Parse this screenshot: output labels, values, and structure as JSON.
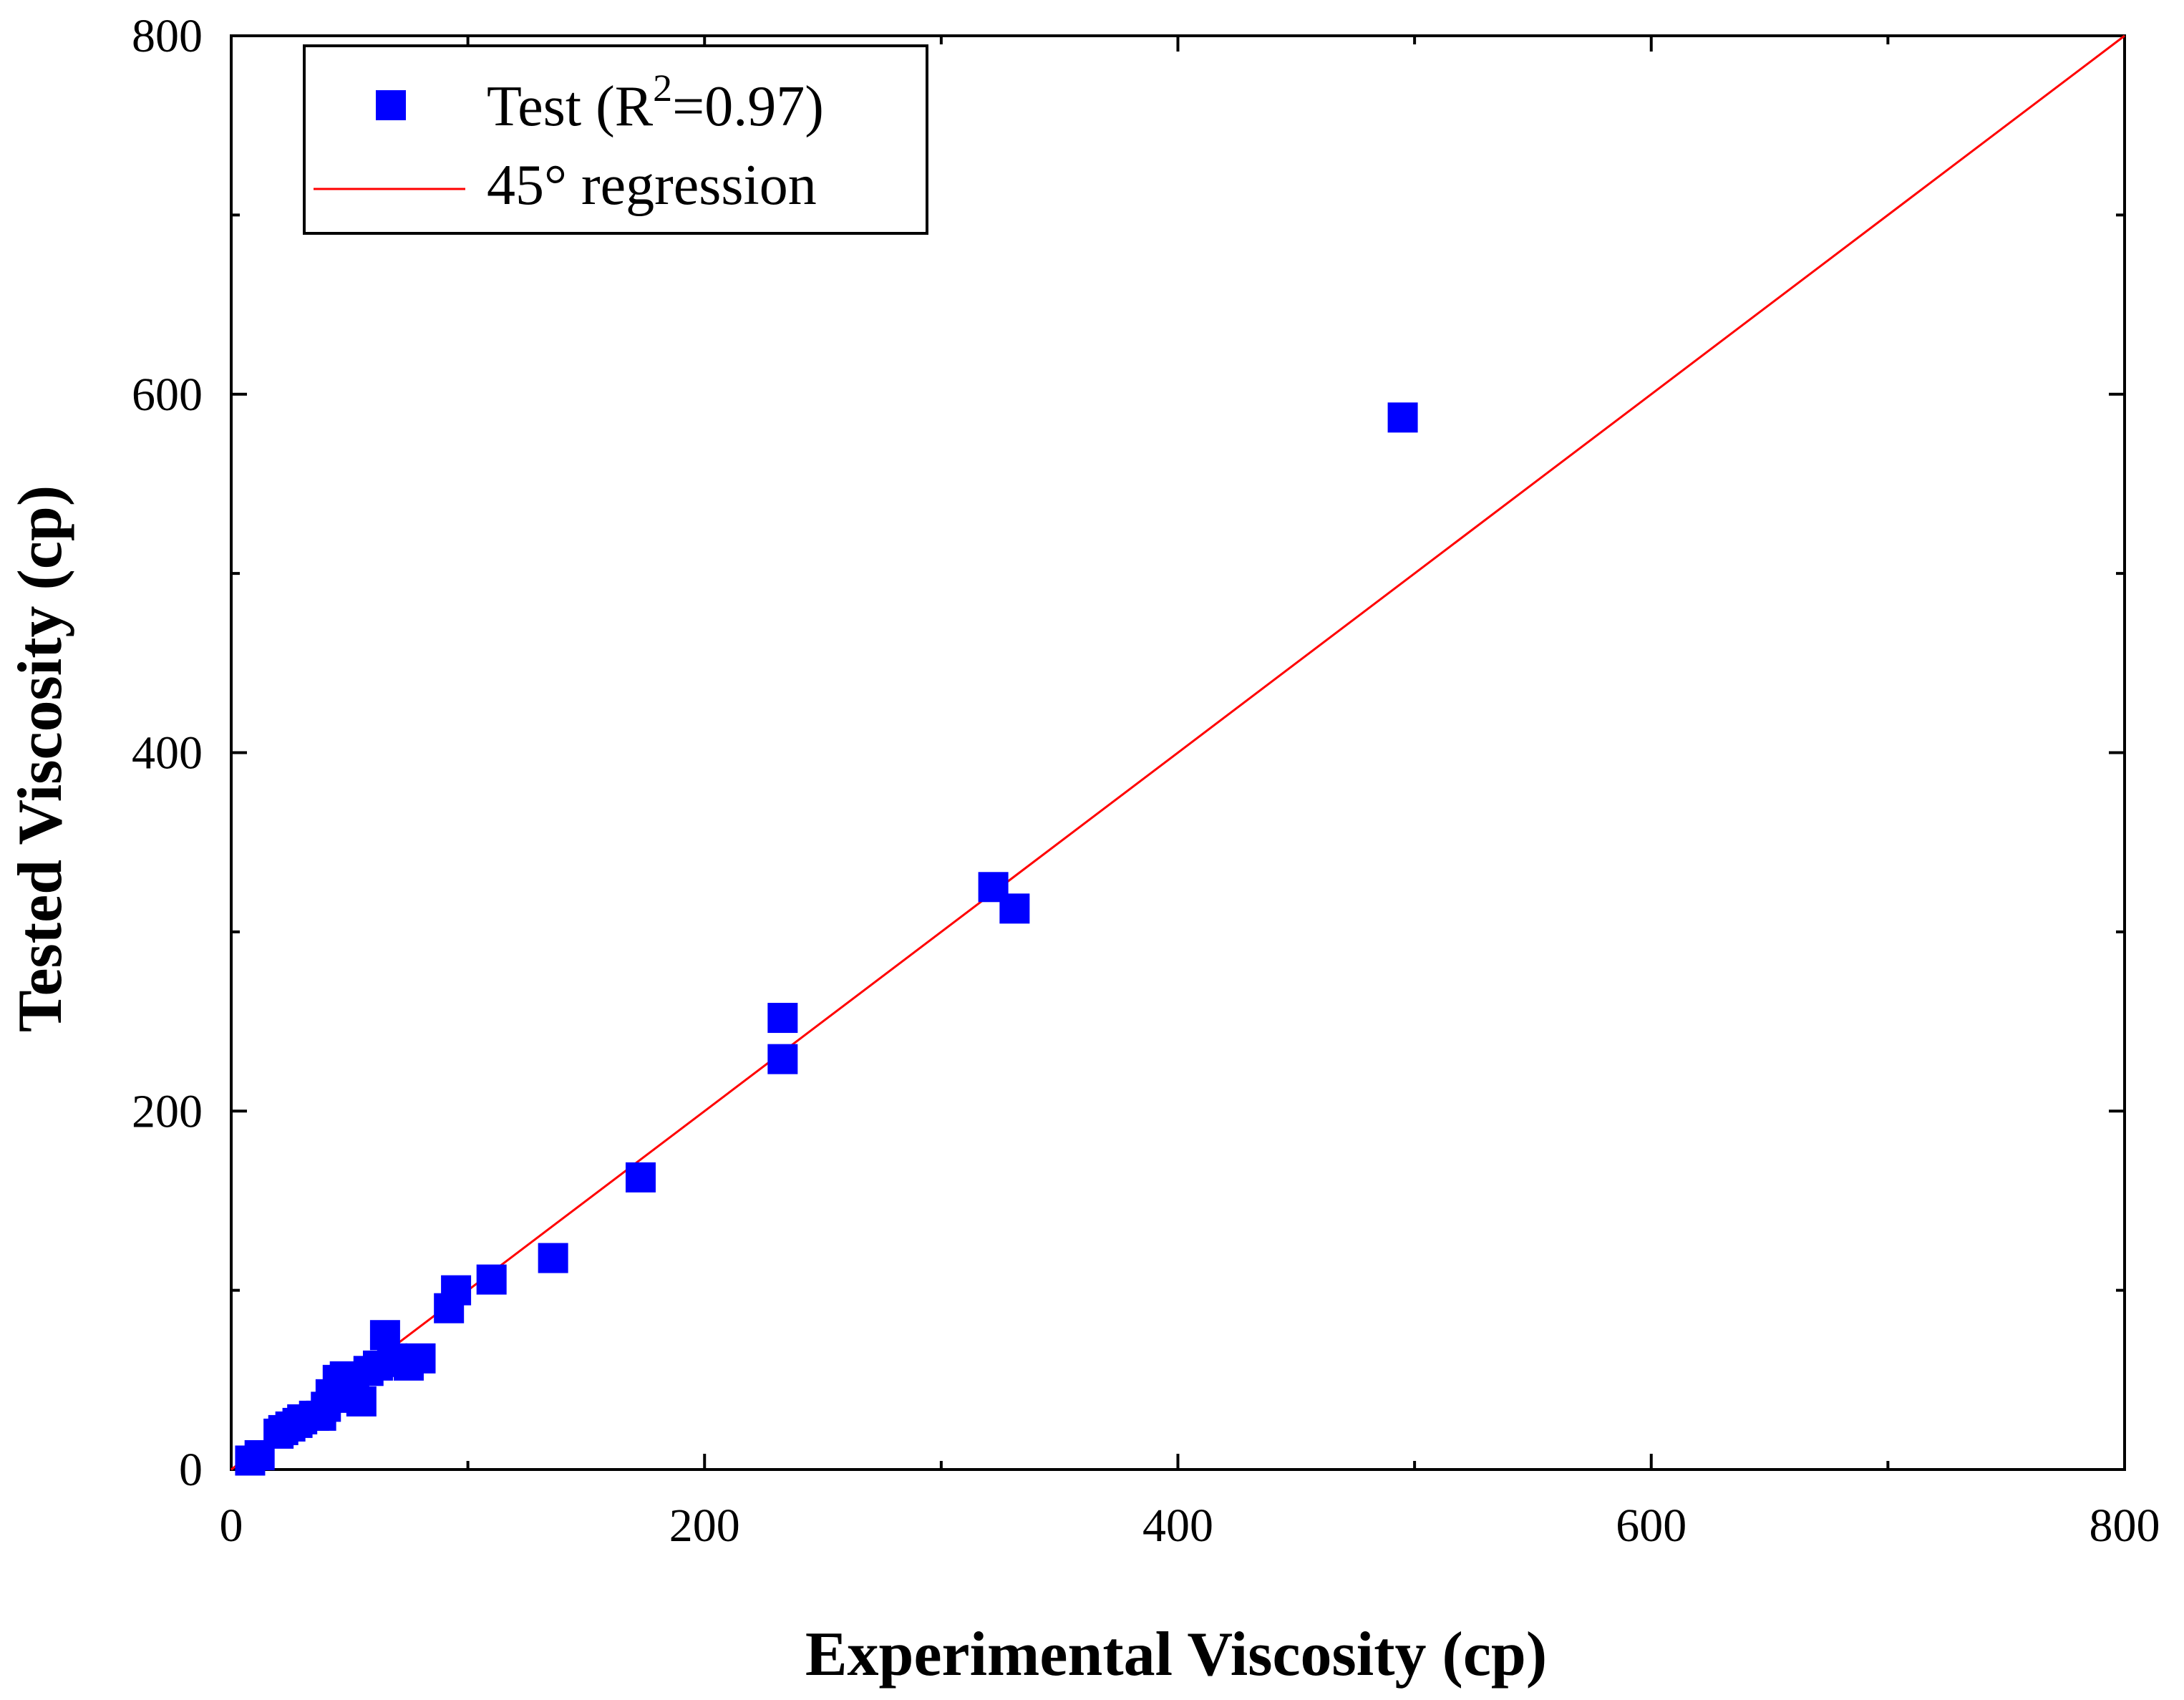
{
  "chart_data": {
    "type": "scatter",
    "xlabel": "Experimental Viscosity (cp)",
    "ylabel": "Tested Viscosity (cp)",
    "xlim": [
      0,
      800
    ],
    "ylim": [
      0,
      800
    ],
    "x_ticks": [
      0,
      200,
      400,
      600,
      800
    ],
    "y_ticks": [
      0,
      200,
      400,
      600,
      800
    ],
    "x_tick_labels": [
      "0",
      "200",
      "400",
      "600",
      "800"
    ],
    "y_tick_labels": [
      "0",
      "200",
      "400",
      "600",
      "800"
    ],
    "grid": false,
    "legend_position": "top-left",
    "legend": {
      "test_label": "Test (R",
      "test_label_sup": "2",
      "test_label_end": "=0.97)",
      "regression_label": "45° regression"
    },
    "colors": {
      "points": "#0000ff",
      "regression": "#ff0000",
      "axis": "#000000"
    },
    "series": [
      {
        "name": "Test (R2=0.97)",
        "type": "scatter",
        "marker": "square",
        "points": [
          [
            8,
            5
          ],
          [
            12,
            8
          ],
          [
            20,
            20
          ],
          [
            22,
            22
          ],
          [
            25,
            24
          ],
          [
            28,
            26
          ],
          [
            30,
            28
          ],
          [
            35,
            30
          ],
          [
            38,
            30
          ],
          [
            40,
            35
          ],
          [
            42,
            42
          ],
          [
            45,
            50
          ],
          [
            48,
            52
          ],
          [
            50,
            48
          ],
          [
            52,
            40
          ],
          [
            55,
            38
          ],
          [
            58,
            55
          ],
          [
            62,
            58
          ],
          [
            65,
            75
          ],
          [
            68,
            62
          ],
          [
            72,
            60
          ],
          [
            75,
            58
          ],
          [
            80,
            62
          ],
          [
            92,
            90
          ],
          [
            95,
            100
          ],
          [
            110,
            106
          ],
          [
            136,
            118
          ],
          [
            173,
            163
          ],
          [
            233,
            229
          ],
          [
            233,
            252
          ],
          [
            322,
            325
          ],
          [
            331,
            313
          ],
          [
            495,
            587
          ]
        ]
      },
      {
        "name": "45° regression",
        "type": "line",
        "points": [
          [
            0,
            0
          ],
          [
            800,
            800
          ]
        ]
      }
    ]
  }
}
